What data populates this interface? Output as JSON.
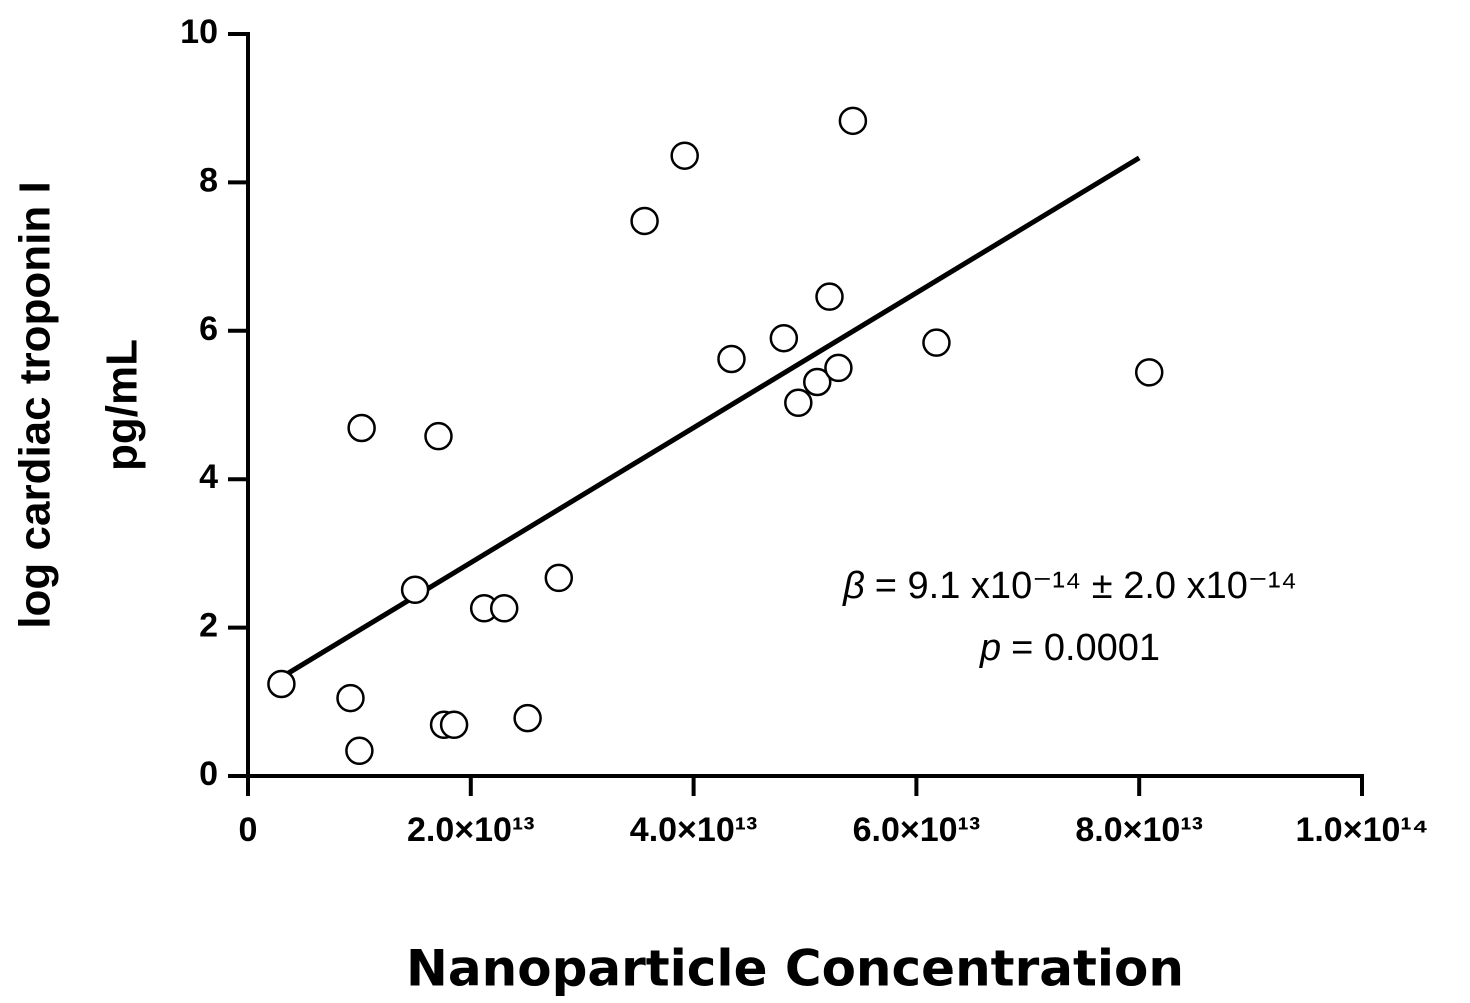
{
  "chart_data": {
    "type": "scatter",
    "xlabel": "Nanoparticle Concentration",
    "ylabel": [
      "log cardiac troponin I",
      "pg/mL"
    ],
    "x": [
      3000000000000.0,
      9200000000000.0,
      10000000000000.0,
      10200000000000.0,
      15000000000000.0,
      17100000000000.0,
      17600000000000.0,
      18500000000000.0,
      21200000000000.0,
      23000000000000.0,
      25100000000000.0,
      27900000000000.0,
      35600000000000.0,
      39200000000000.0,
      43400000000000.0,
      48100000000000.0,
      49400000000000.0,
      51100000000000.0,
      52200000000000.0,
      53000000000000.0,
      54300000000000.0,
      61800000000000.0,
      80900000000000.0
    ],
    "values": [
      1.24,
      1.05,
      0.34,
      4.69,
      2.51,
      4.58,
      0.69,
      0.69,
      2.26,
      2.26,
      0.78,
      2.67,
      7.48,
      8.36,
      5.62,
      5.9,
      5.03,
      5.31,
      6.46,
      5.5,
      8.83,
      5.84,
      5.44
    ],
    "trendline": {
      "x": [
        3000000000000.0,
        80000000000000.0
      ],
      "y": [
        1.33,
        8.33
      ]
    },
    "annotations": [
      {
        "symbol": "β",
        "text": "= 9.1 x10⁻¹⁴ ± 2.0 x10⁻¹⁴"
      },
      {
        "symbol": "p",
        "text": "= 0.0001"
      }
    ],
    "xlim": [
      0,
      100000000000000.0
    ],
    "ylim": [
      0,
      10
    ],
    "xticks": [
      0,
      {
        "value": 20000000000000.0,
        "label": "2.0×10¹³"
      },
      {
        "value": 40000000000000.0,
        "label": "4.0×10¹³"
      },
      {
        "value": 60000000000000.0,
        "label": "6.0×10¹³"
      },
      {
        "value": 80000000000000.0,
        "label": "8.0×10¹³"
      },
      {
        "value": 100000000000000.0,
        "label": "1.0×10¹⁴"
      }
    ],
    "yticks": [
      0,
      2,
      4,
      6,
      8,
      10
    ],
    "grid": false,
    "color": "#000000"
  }
}
